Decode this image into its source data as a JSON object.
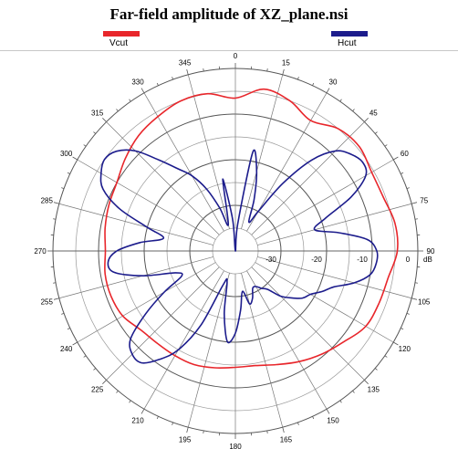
{
  "chart_data": {
    "type": "polar-line",
    "title": "Far-field amplitude of XZ_plane.nsi",
    "angle_ticks": [
      "0",
      "15",
      "30",
      "45",
      "60",
      "75",
      "90",
      "105",
      "120",
      "135",
      "150",
      "165",
      "180",
      "195",
      "210",
      "225",
      "240",
      "255",
      "270",
      "285",
      "300",
      "315",
      "330",
      "345"
    ],
    "radial_ticks": [
      "-30",
      "-20",
      "-10",
      "0"
    ],
    "radial_unit": "dB",
    "rlim": [
      -40,
      0
    ],
    "grid": true,
    "colors": {
      "Vcut": "#e8262b",
      "Hcut": "#1c1c8c"
    },
    "series": [
      {
        "name": "Vcut",
        "theta_deg": [
          0,
          10,
          20,
          30,
          40,
          50,
          60,
          70,
          80,
          90,
          100,
          110,
          120,
          130,
          140,
          150,
          160,
          170,
          180,
          190,
          200,
          210,
          220,
          230,
          240,
          250,
          260,
          270,
          280,
          290,
          300,
          310,
          320,
          330,
          340,
          350
        ],
        "r_db": [
          -6.5,
          -4.0,
          -5.0,
          -7.0,
          -5.0,
          -4.5,
          -5.5,
          -5.5,
          -4.5,
          -4.5,
          -6.0,
          -6.5,
          -7.0,
          -9.0,
          -10.5,
          -12.0,
          -13.5,
          -14.5,
          -14.5,
          -14.0,
          -13.5,
          -13.5,
          -13.5,
          -13.0,
          -11.5,
          -11.0,
          -11.0,
          -11.5,
          -11.0,
          -10.5,
          -10.0,
          -8.5,
          -7.0,
          -6.0,
          -5.0,
          -5.0
        ]
      },
      {
        "name": "Hcut",
        "theta_deg": [
          0,
          5,
          10,
          15,
          20,
          25,
          30,
          35,
          40,
          45,
          50,
          55,
          60,
          65,
          70,
          75,
          80,
          85,
          90,
          95,
          100,
          105,
          110,
          115,
          120,
          125,
          130,
          135,
          140,
          145,
          150,
          155,
          160,
          165,
          170,
          175,
          180,
          185,
          190,
          195,
          200,
          205,
          210,
          215,
          220,
          225,
          230,
          235,
          240,
          245,
          250,
          255,
          260,
          265,
          270,
          275,
          280,
          285,
          290,
          295,
          300,
          305,
          310,
          315,
          320,
          325,
          330,
          335,
          340,
          345,
          350,
          355
        ],
        "r_db": [
          -40,
          -34,
          -18,
          -22,
          -28,
          -33,
          -30,
          -22,
          -14,
          -9,
          -7,
          -6,
          -7,
          -12,
          -19,
          -22,
          -17,
          -11,
          -9,
          -9,
          -10,
          -13,
          -17,
          -19,
          -21,
          -22,
          -24,
          -26,
          -29,
          -30,
          -31,
          -31,
          -29,
          -28,
          -31,
          -27,
          -22,
          -20,
          -26,
          -33,
          -32,
          -22,
          -15,
          -11,
          -8,
          -8,
          -10,
          -16,
          -22,
          -27,
          -26,
          -19,
          -13,
          -12,
          -14,
          -19,
          -24,
          -20,
          -13,
          -8,
          -6,
          -5,
          -6,
          -9,
          -14,
          -18,
          -21,
          -25,
          -30,
          -34,
          -24,
          -33
        ]
      }
    ]
  }
}
